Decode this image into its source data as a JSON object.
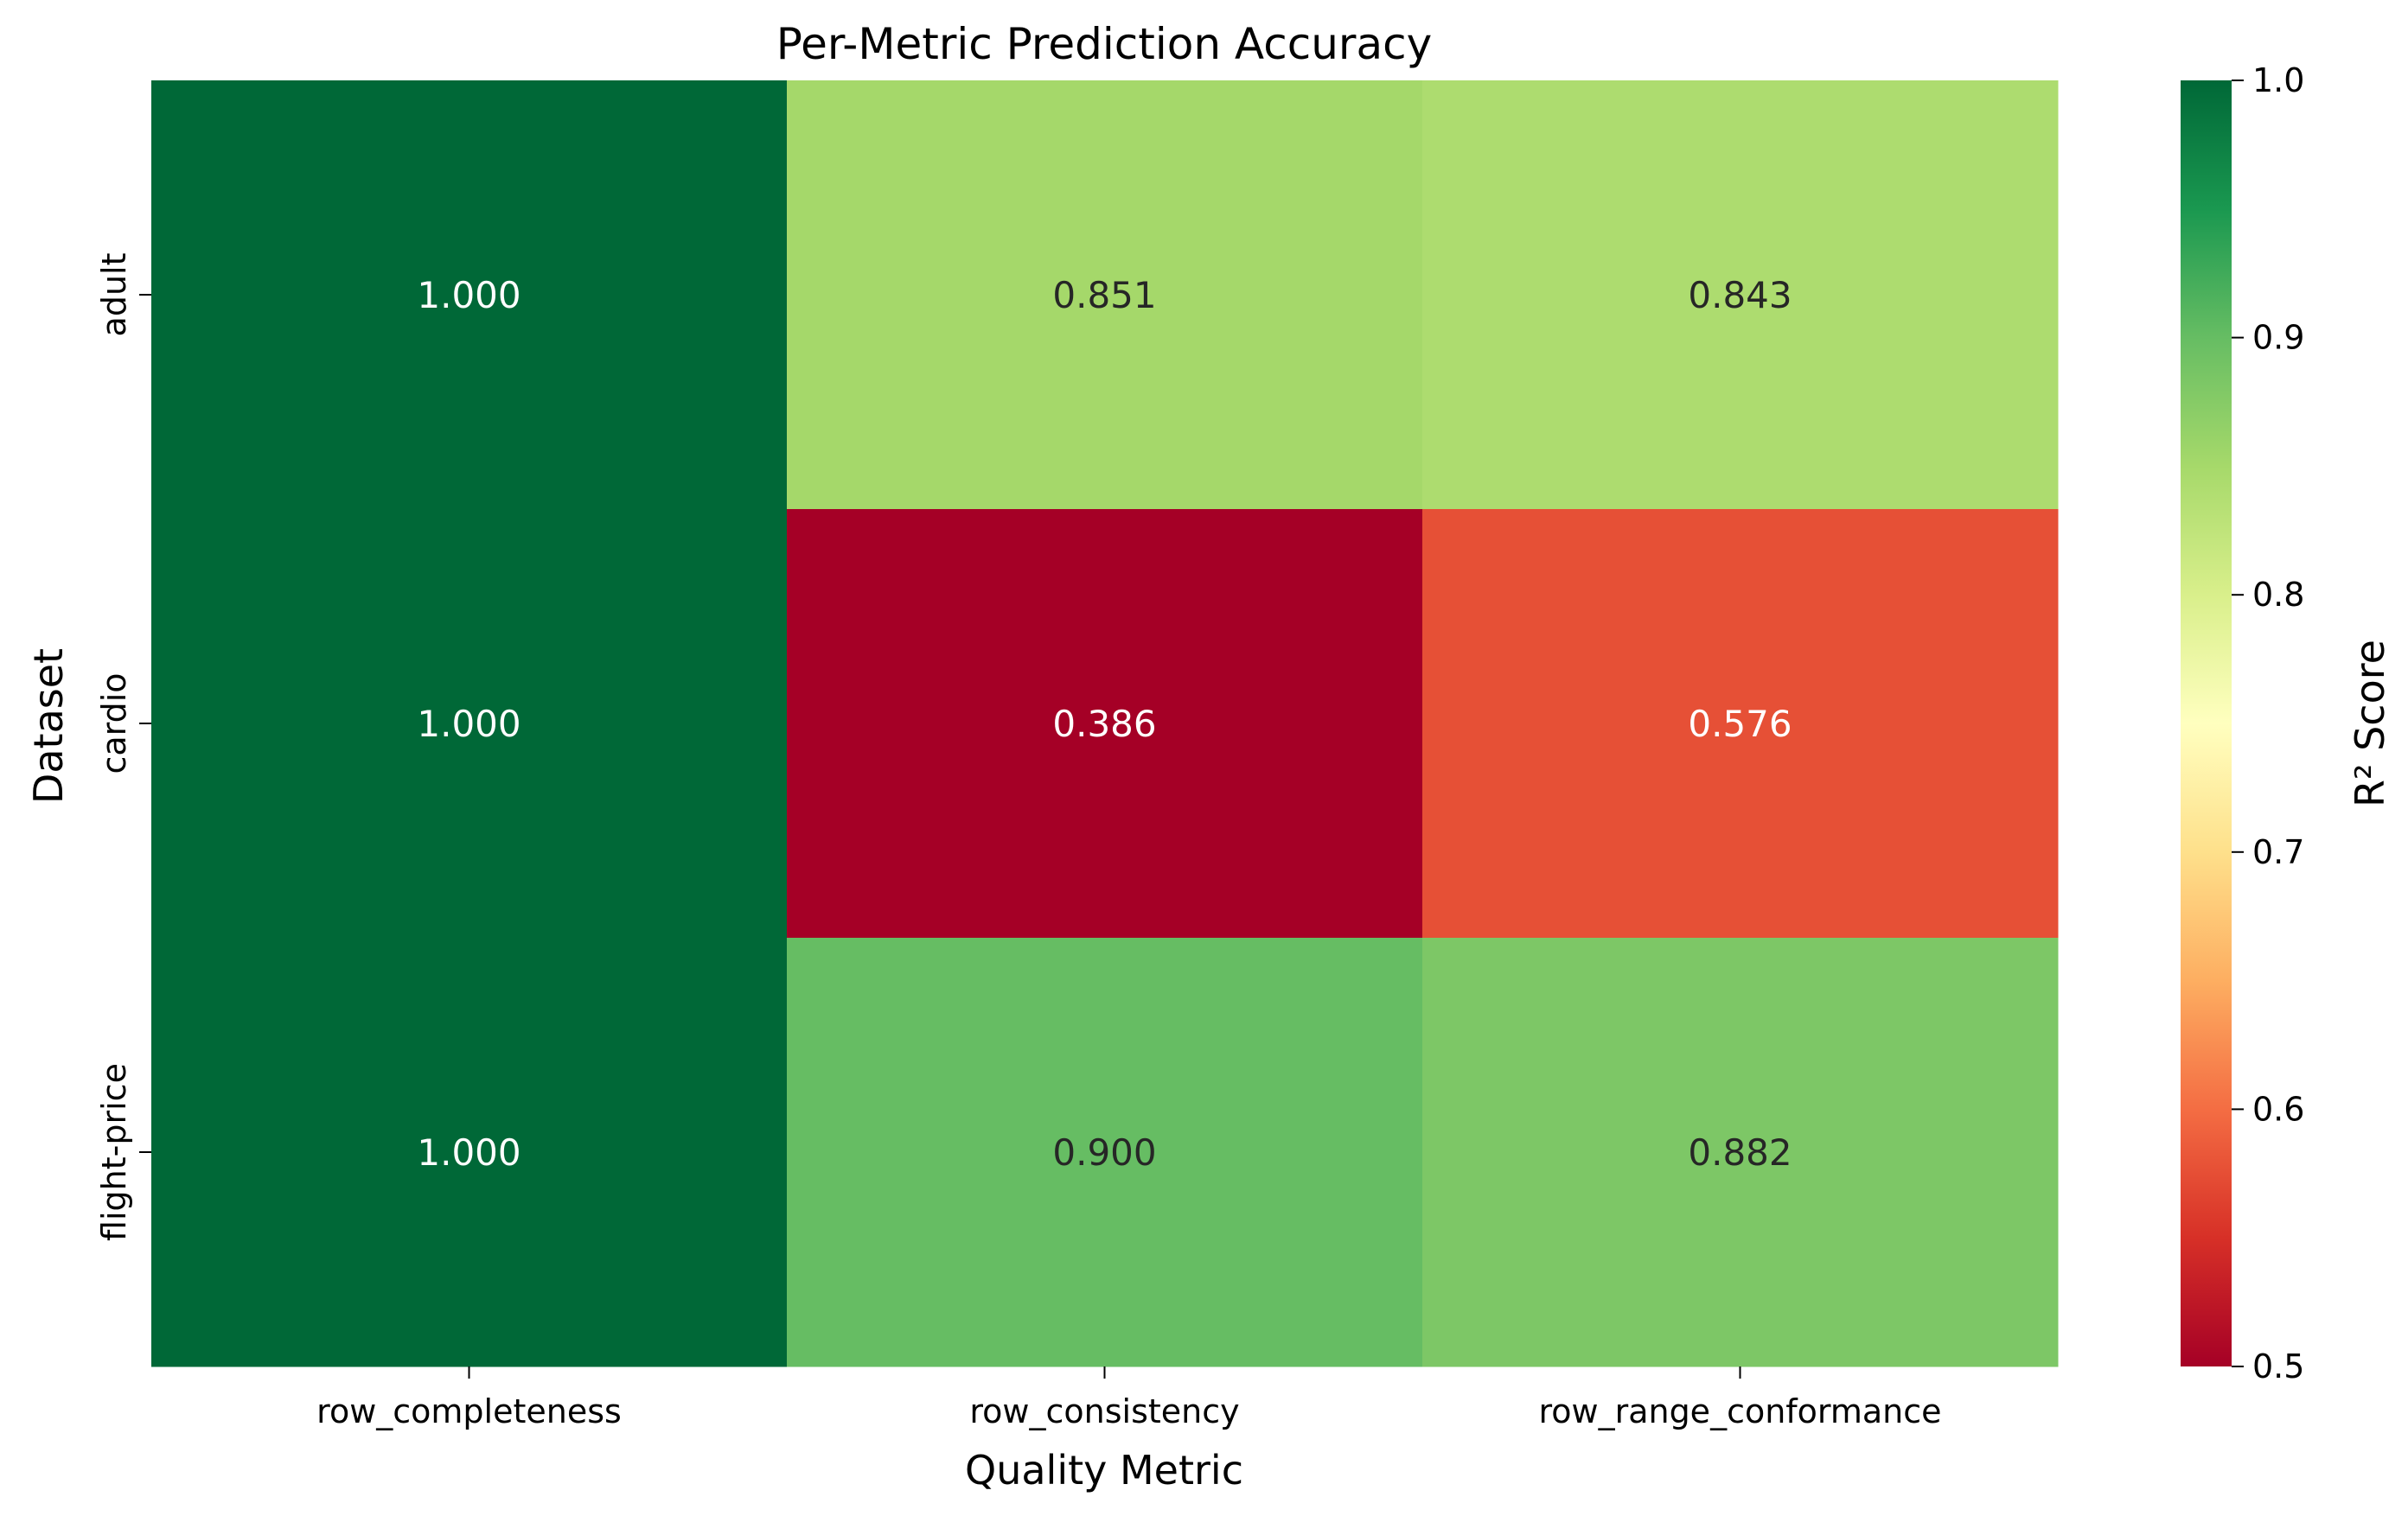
{
  "chart_data": {
    "type": "heatmap",
    "title": "Per-Metric Prediction Accuracy",
    "xlabel": "Quality Metric",
    "ylabel": "Dataset",
    "x_categories": [
      "row_completeness",
      "row_consistency",
      "row_range_conformance"
    ],
    "y_categories": [
      "adult",
      "cardio",
      "flight-price"
    ],
    "values": [
      [
        1.0,
        0.851,
        0.843
      ],
      [
        1.0,
        0.386,
        0.576
      ],
      [
        1.0,
        0.9,
        0.882
      ]
    ],
    "value_labels": [
      [
        "1.000",
        "0.851",
        "0.843"
      ],
      [
        "1.000",
        "0.386",
        "0.576"
      ],
      [
        "1.000",
        "0.900",
        "0.882"
      ]
    ],
    "colorbar": {
      "label": "R² Score",
      "vmin": 0.5,
      "vmax": 1.0,
      "ticks": [
        "0.5",
        "0.6",
        "0.7",
        "0.8",
        "0.9",
        "1.0"
      ],
      "colormap": "RdYlGn"
    },
    "grid": false,
    "legend": "colorbar-right"
  }
}
